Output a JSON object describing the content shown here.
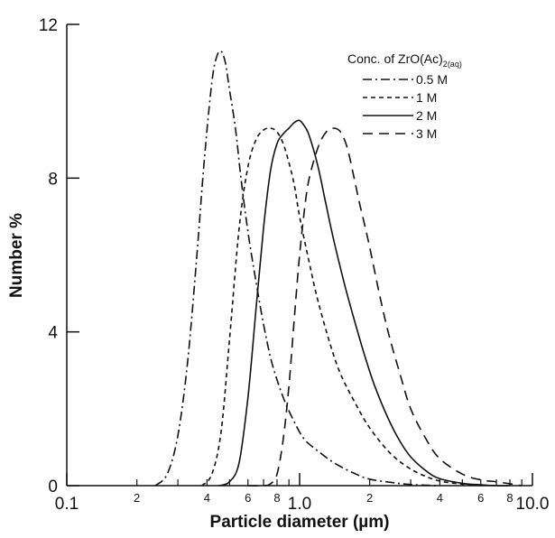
{
  "chart_data": {
    "type": "line",
    "xscale": "log",
    "xlim": [
      0.1,
      10.0
    ],
    "ylim": [
      0,
      12
    ],
    "xlabel": "Particle diameter (µm)",
    "ylabel": "Number %",
    "y_ticks": [
      "0",
      "4",
      "8",
      "12"
    ],
    "x_major_ticks": [
      "0.1",
      "1.0",
      "10.0"
    ],
    "x_minor_ticks": [
      "2",
      "4",
      "6",
      "8",
      "2",
      "4",
      "6",
      "8"
    ],
    "legend": {
      "title_main": "Conc. of ZrO(Ac)",
      "title_sub1": "2",
      "title_sub2": "(aq)",
      "position": "top-right"
    },
    "series": [
      {
        "name": "0.5 M",
        "dash": "dashdot",
        "x": [
          0.24,
          0.27,
          0.3,
          0.33,
          0.36,
          0.39,
          0.42,
          0.44,
          0.46,
          0.48,
          0.5,
          0.53,
          0.56,
          0.6,
          0.65,
          0.7,
          0.76,
          0.85,
          0.95,
          1.05,
          1.2,
          1.4,
          1.7,
          2.0,
          2.5,
          3.0,
          4.0
        ],
        "y": [
          0.0,
          0.3,
          1.3,
          3.2,
          5.8,
          8.5,
          10.5,
          11.15,
          11.3,
          11.0,
          10.3,
          9.3,
          8.0,
          6.6,
          5.3,
          4.2,
          3.2,
          2.3,
          1.65,
          1.2,
          0.9,
          0.6,
          0.33,
          0.17,
          0.08,
          0.03,
          0.0
        ]
      },
      {
        "name": "1 M",
        "dash": "shortdash",
        "x": [
          0.38,
          0.42,
          0.46,
          0.5,
          0.55,
          0.6,
          0.65,
          0.7,
          0.75,
          0.8,
          0.85,
          0.9,
          0.95,
          1.0,
          1.1,
          1.2,
          1.35,
          1.5,
          1.75,
          2.0,
          2.4,
          2.8,
          3.3,
          4.0,
          5.0,
          6.0
        ],
        "y": [
          0.0,
          0.3,
          1.4,
          3.8,
          6.7,
          8.3,
          9.0,
          9.25,
          9.3,
          9.2,
          8.9,
          8.4,
          7.8,
          7.0,
          5.8,
          4.8,
          3.7,
          2.9,
          2.1,
          1.5,
          0.9,
          0.55,
          0.3,
          0.12,
          0.04,
          0.0
        ]
      },
      {
        "name": "2 M",
        "dash": "solid",
        "x": [
          0.45,
          0.5,
          0.55,
          0.6,
          0.65,
          0.7,
          0.75,
          0.8,
          0.85,
          0.9,
          0.95,
          1.0,
          1.05,
          1.1,
          1.2,
          1.3,
          1.4,
          1.55,
          1.7,
          1.9,
          2.1,
          2.4,
          2.7,
          3.0,
          3.5,
          4.0,
          5.0,
          6.0,
          7.0,
          8.0
        ],
        "y": [
          0.0,
          0.1,
          0.6,
          2.3,
          4.6,
          6.7,
          8.2,
          8.9,
          9.15,
          9.3,
          9.45,
          9.5,
          9.35,
          9.1,
          8.3,
          7.3,
          6.4,
          5.3,
          4.4,
          3.4,
          2.6,
          1.75,
          1.15,
          0.75,
          0.38,
          0.18,
          0.06,
          0.02,
          0.0,
          0.0
        ]
      },
      {
        "name": "3 M",
        "dash": "longdash",
        "x": [
          0.6,
          0.7,
          0.75,
          0.8,
          0.85,
          0.9,
          0.95,
          1.0,
          1.05,
          1.1,
          1.2,
          1.3,
          1.4,
          1.5,
          1.6,
          1.7,
          1.8,
          1.9,
          2.0,
          2.2,
          2.4,
          2.7,
          3.0,
          3.5,
          4.0,
          5.0,
          6.0,
          7.0,
          8.0,
          9.0
        ],
        "y": [
          0.0,
          0.0,
          0.05,
          0.3,
          1.2,
          2.6,
          4.4,
          6.0,
          7.2,
          8.0,
          8.8,
          9.2,
          9.3,
          9.2,
          8.8,
          8.1,
          7.4,
          6.8,
          6.2,
          5.0,
          4.0,
          2.9,
          2.0,
          1.2,
          0.7,
          0.3,
          0.15,
          0.1,
          0.05,
          0.0
        ]
      }
    ]
  }
}
